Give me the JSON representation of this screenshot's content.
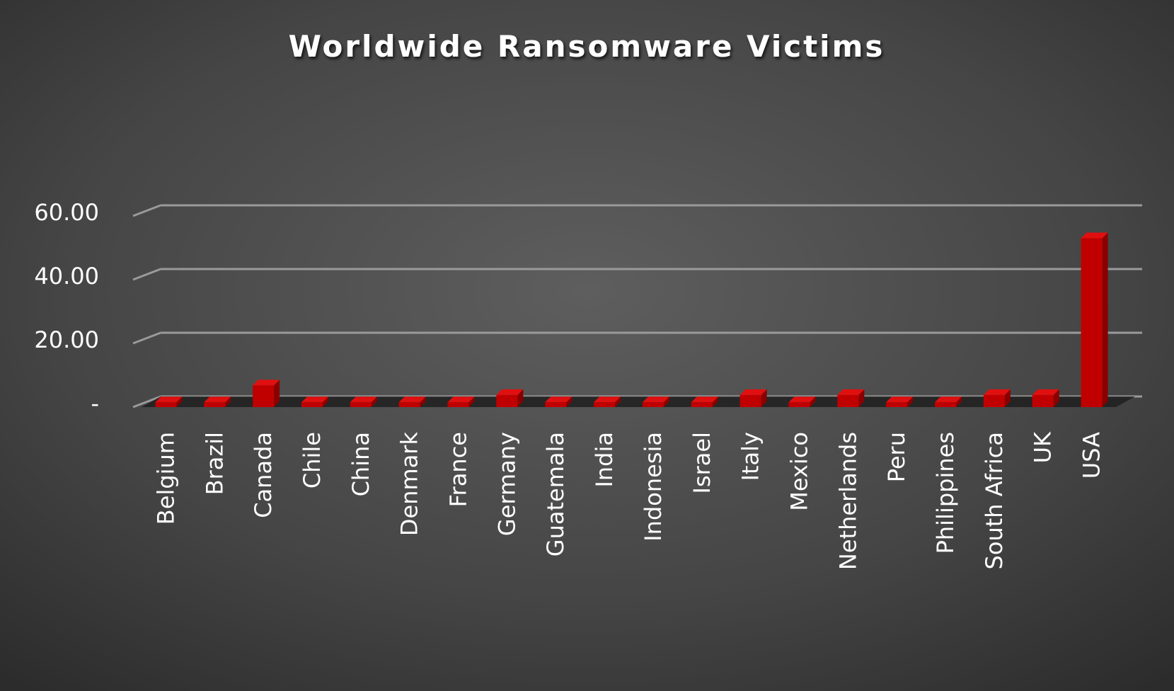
{
  "chart_data": {
    "type": "bar",
    "title": "Worldwide Ransomware Victims",
    "xlabel": "",
    "ylabel": "",
    "categories": [
      "Belgium",
      "Brazil",
      "Canada",
      "Chile",
      "China",
      "Denmark",
      "France",
      "Germany",
      "Guatemala",
      "India",
      "Indonesia",
      "Israel",
      "Italy",
      "Mexico",
      "Netherlands",
      "Peru",
      "Philippines",
      "South Africa",
      "UK",
      "USA"
    ],
    "values": [
      1.5,
      1.5,
      6.8,
      1.5,
      1.5,
      1.5,
      1.5,
      3.8,
      1.5,
      1.5,
      1.5,
      1.5,
      3.8,
      1.5,
      3.8,
      1.5,
      1.5,
      3.8,
      3.8,
      53.0
    ],
    "ylim": [
      0,
      60
    ],
    "yticks": [
      {
        "value": 0,
        "label": "-"
      },
      {
        "value": 20,
        "label": "20.00"
      },
      {
        "value": 40,
        "label": "40.00"
      },
      {
        "value": 60,
        "label": "60.00"
      }
    ],
    "grid": true,
    "legend": "none",
    "bar_color": "#c00000",
    "bar_top_color": "#e01010",
    "bar_side_color": "#8a0000",
    "background_color": "#4a4a4a",
    "gridline_color": "#9a9a9a"
  }
}
